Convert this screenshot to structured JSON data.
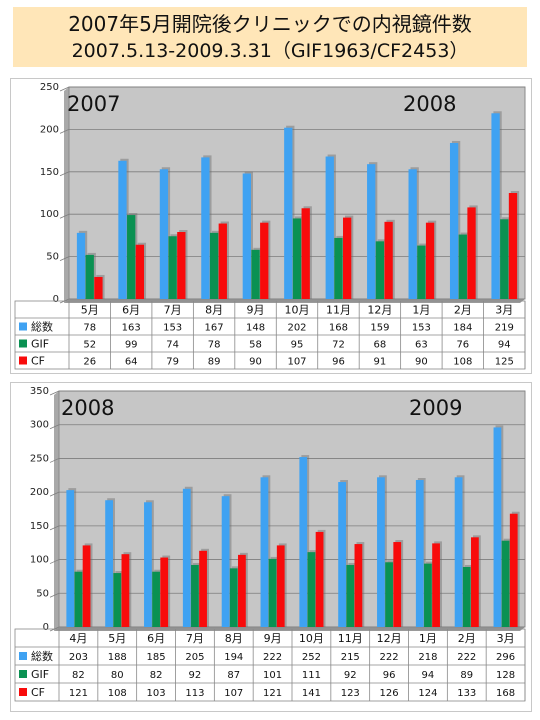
{
  "header": {
    "title": "2007年5月開院後クリニックでの内視鏡件数",
    "subtitle": "2007.5.13-2009.3.31（GIF1963/CF2453）"
  },
  "colors": {
    "total": "#3fa2f2",
    "gif": "#0a9152",
    "cf": "#f80b0b",
    "plot_bg": "#c6c6c6"
  },
  "chart_data": [
    {
      "type": "bar",
      "year_labels": [
        "2007",
        "2008"
      ],
      "categories": [
        "5月",
        "6月",
        "7月",
        "8月",
        "9月",
        "10月",
        "11月",
        "12月",
        "1月",
        "2月",
        "3月"
      ],
      "ylim": [
        0,
        250
      ],
      "yticks": [
        "0",
        "50",
        "100",
        "150",
        "200",
        "250"
      ],
      "grid": true,
      "legend": "table-left",
      "series": [
        {
          "name": "総数",
          "values": [
            78,
            163,
            153,
            167,
            148,
            202,
            168,
            159,
            153,
            184,
            219
          ]
        },
        {
          "name": "GIF",
          "values": [
            52,
            99,
            74,
            78,
            58,
            95,
            72,
            68,
            63,
            76,
            94
          ]
        },
        {
          "name": "CF",
          "values": [
            26,
            64,
            79,
            89,
            90,
            107,
            96,
            91,
            90,
            108,
            125
          ]
        }
      ]
    },
    {
      "type": "bar",
      "year_labels": [
        "2008",
        "2009"
      ],
      "categories": [
        "4月",
        "5月",
        "6月",
        "7月",
        "8月",
        "9月",
        "10月",
        "11月",
        "12月",
        "1月",
        "2月",
        "3月"
      ],
      "ylim": [
        0,
        350
      ],
      "yticks": [
        "0",
        "50",
        "100",
        "150",
        "200",
        "250",
        "300",
        "350"
      ],
      "grid": true,
      "legend": "table-left",
      "series": [
        {
          "name": "総数",
          "values": [
            203,
            188,
            185,
            205,
            194,
            222,
            252,
            215,
            222,
            218,
            222,
            296
          ]
        },
        {
          "name": "GIF",
          "values": [
            82,
            80,
            82,
            92,
            87,
            101,
            111,
            92,
            96,
            94,
            89,
            128
          ]
        },
        {
          "name": "CF",
          "values": [
            121,
            108,
            103,
            113,
            107,
            121,
            141,
            123,
            126,
            124,
            133,
            168
          ]
        }
      ]
    }
  ]
}
